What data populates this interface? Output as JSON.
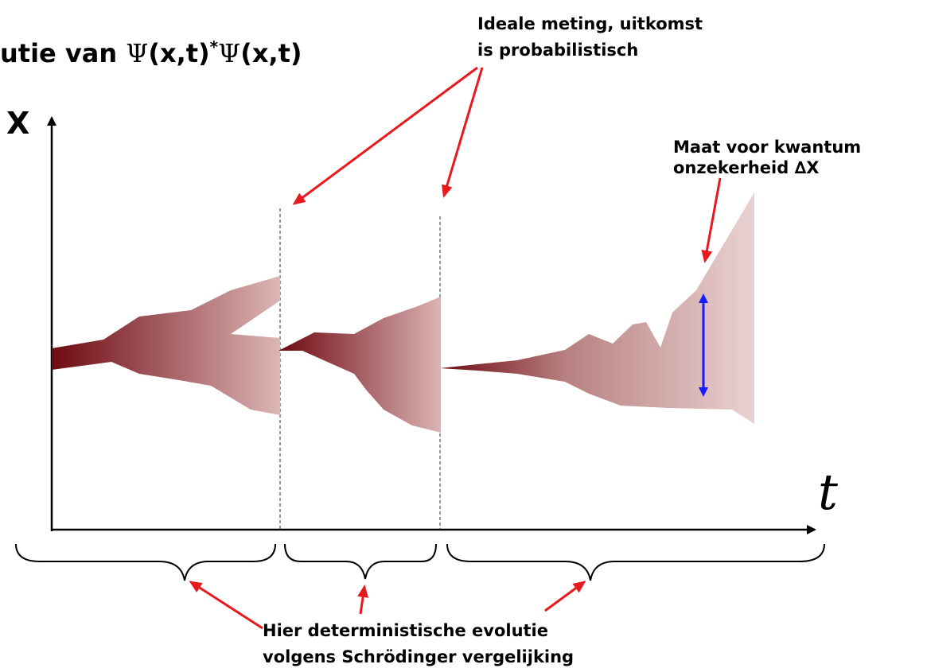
{
  "title": {
    "prefix": "utie van ",
    "psi_symbol": "Ψ",
    "args": "(x,t)",
    "star": "*",
    "args2": "(x,t)"
  },
  "axes": {
    "y_label": "X",
    "x_label": "t"
  },
  "annotations": {
    "measurement_line1": "Ideale meting, uitkomst",
    "measurement_line2": "is probabilistisch",
    "uncertainty_line1": "Maat voor kwantum",
    "uncertainty_line2": "onzekerheid ",
    "uncertainty_delta": "∆X",
    "deterministic_line1": "Hier deterministische evolutie",
    "deterministic_line2": "volgens Schrödinger vergelijking"
  },
  "colors": {
    "wave_dark": "#6e0a12",
    "wave_light": "#e8cccc",
    "arrow_red": "#e8191c",
    "arrow_blue": "#1a1aff"
  }
}
